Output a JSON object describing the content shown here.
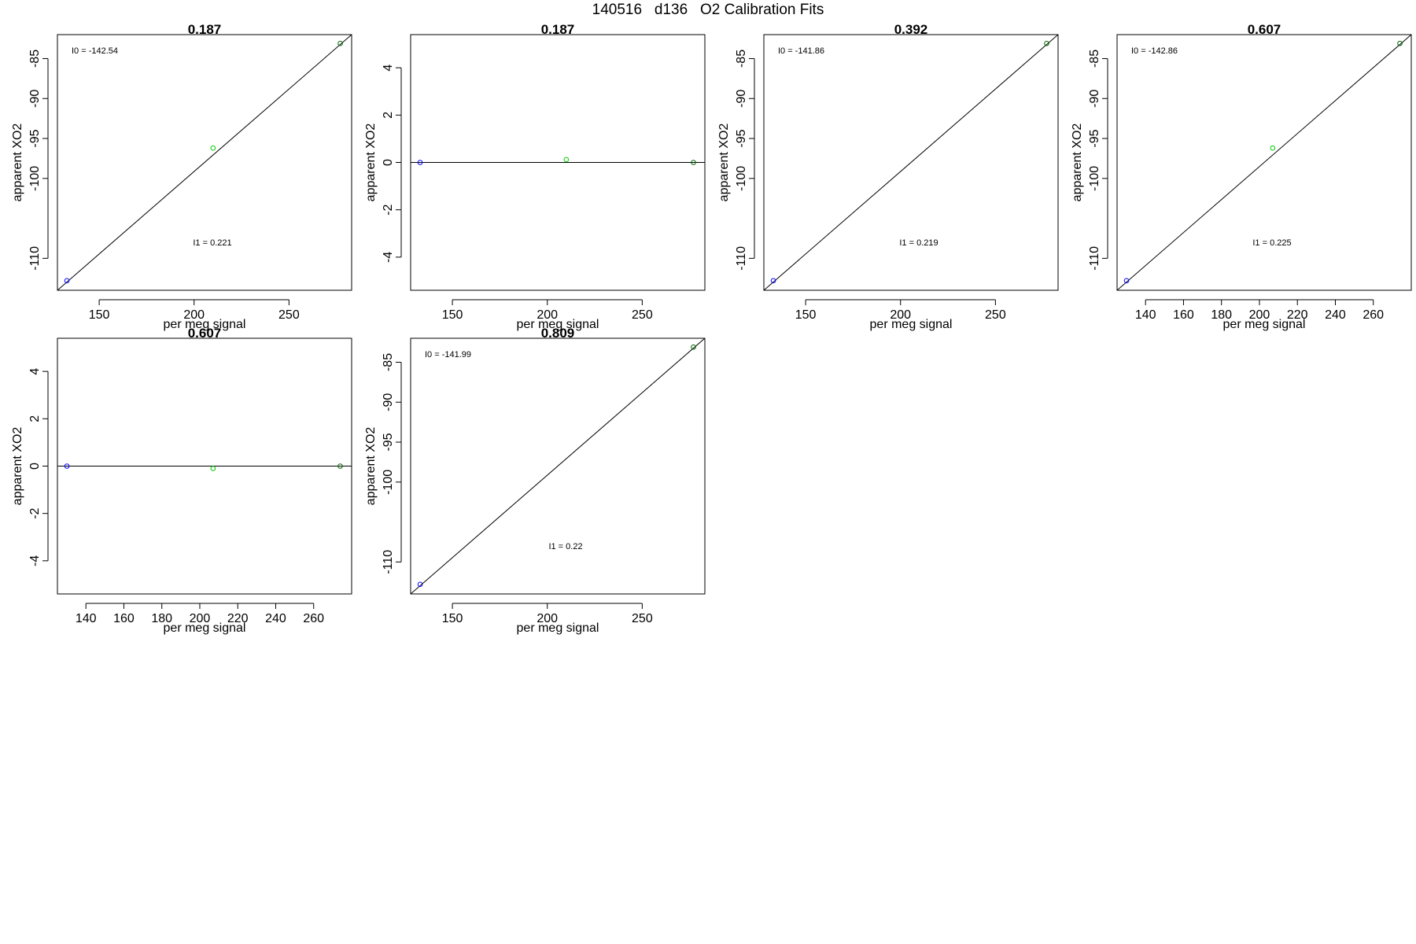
{
  "page": {
    "title": "140516   d136   O2 Calibration Fits"
  },
  "colors": {
    "frame": "#000000",
    "fit_line": "#000000",
    "low_point": "#0000ff",
    "mid_point": "#00cc00",
    "high_point": "#006400"
  },
  "chart_data": [
    {
      "type": "scatter",
      "title": "0.187",
      "xlabel": "per meg signal",
      "ylabel": "apparent XO2",
      "xlim": [
        128,
        283
      ],
      "ylim": [
        -114,
        -82
      ],
      "x_ticks": [
        150,
        200,
        250
      ],
      "y_ticks": [
        -85,
        -90,
        -95,
        -100,
        -110
      ],
      "points": [
        {
          "x": 133,
          "y": -112.8,
          "color": "low_point"
        },
        {
          "x": 210,
          "y": -96.2,
          "color": "mid_point"
        },
        {
          "x": 277,
          "y": -83.1,
          "color": "high_point"
        }
      ],
      "fit_line": {
        "x": [
          128,
          283
        ],
        "y": [
          -114,
          -82
        ]
      },
      "annotations": [
        {
          "label": "I0 =",
          "value": "-142.54",
          "anchor": "top-left"
        },
        {
          "label": "I1 =",
          "value": "0.221",
          "anchor": "bottom-center"
        }
      ],
      "grid": false
    },
    {
      "type": "scatter",
      "title": "0.187",
      "xlabel": "per meg signal",
      "ylabel": "apparent XO2",
      "xlim": [
        128,
        283
      ],
      "ylim": [
        -5.4,
        5.4
      ],
      "x_ticks": [
        150,
        200,
        250
      ],
      "y_ticks": [
        4,
        2,
        0,
        -2,
        -4
      ],
      "points": [
        {
          "x": 133,
          "y": 0.0,
          "color": "low_point"
        },
        {
          "x": 210,
          "y": 0.12,
          "color": "mid_point"
        },
        {
          "x": 277,
          "y": 0.0,
          "color": "high_point"
        }
      ],
      "fit_line": {
        "x": [
          128,
          283
        ],
        "y": [
          0,
          0
        ]
      },
      "annotations": [],
      "grid": false
    },
    {
      "type": "scatter",
      "title": "0.392",
      "xlabel": "per meg signal",
      "ylabel": "apparent XO2",
      "xlim": [
        128,
        283
      ],
      "ylim": [
        -114,
        -82
      ],
      "x_ticks": [
        150,
        200,
        250
      ],
      "y_ticks": [
        -85,
        -90,
        -95,
        -100,
        -110
      ],
      "points": [
        {
          "x": 133,
          "y": -112.8,
          "color": "low_point"
        },
        {
          "x": 277,
          "y": -83.1,
          "color": "high_point"
        }
      ],
      "fit_line": {
        "x": [
          128,
          283
        ],
        "y": [
          -114,
          -82
        ]
      },
      "annotations": [
        {
          "label": "I0 =",
          "value": "-141.86",
          "anchor": "top-left"
        },
        {
          "label": "I1 =",
          "value": "0.219",
          "anchor": "bottom-center"
        }
      ],
      "grid": false
    },
    {
      "type": "scatter",
      "title": "0.607",
      "xlabel": "per meg signal",
      "ylabel": "apparent XO2",
      "xlim": [
        125,
        280
      ],
      "ylim": [
        -114,
        -82
      ],
      "x_ticks": [
        140,
        160,
        180,
        200,
        220,
        240,
        260
      ],
      "y_ticks": [
        -85,
        -90,
        -95,
        -100,
        -110
      ],
      "points": [
        {
          "x": 130,
          "y": -112.8,
          "color": "low_point"
        },
        {
          "x": 207,
          "y": -96.2,
          "color": "mid_point"
        },
        {
          "x": 274,
          "y": -83.1,
          "color": "high_point"
        }
      ],
      "fit_line": {
        "x": [
          125,
          280
        ],
        "y": [
          -114,
          -82
        ]
      },
      "annotations": [
        {
          "label": "I0 =",
          "value": "-142.86",
          "anchor": "top-left"
        },
        {
          "label": "I1 =",
          "value": "0.225",
          "anchor": "bottom-center"
        }
      ],
      "grid": false
    },
    {
      "type": "scatter",
      "title": "0.607",
      "xlabel": "per meg signal",
      "ylabel": "apparent XO2",
      "xlim": [
        125,
        280
      ],
      "ylim": [
        -5.4,
        5.4
      ],
      "x_ticks": [
        140,
        160,
        180,
        200,
        220,
        240,
        260
      ],
      "y_ticks": [
        4,
        2,
        0,
        -2,
        -4
      ],
      "points": [
        {
          "x": 130,
          "y": 0.0,
          "color": "low_point"
        },
        {
          "x": 207,
          "y": -0.1,
          "color": "mid_point"
        },
        {
          "x": 274,
          "y": 0.0,
          "color": "high_point"
        }
      ],
      "fit_line": {
        "x": [
          125,
          280
        ],
        "y": [
          0,
          0
        ]
      },
      "annotations": [],
      "grid": false
    },
    {
      "type": "scatter",
      "title": "0.809",
      "xlabel": "per meg signal",
      "ylabel": "apparent XO2",
      "xlim": [
        128,
        283
      ],
      "ylim": [
        -114,
        -82
      ],
      "x_ticks": [
        150,
        200,
        250
      ],
      "y_ticks": [
        -85,
        -90,
        -95,
        -100,
        -110
      ],
      "points": [
        {
          "x": 133,
          "y": -112.8,
          "color": "low_point"
        },
        {
          "x": 277,
          "y": -83.1,
          "color": "high_point"
        }
      ],
      "fit_line": {
        "x": [
          128,
          283
        ],
        "y": [
          -114,
          -82
        ]
      },
      "annotations": [
        {
          "label": "I0 =",
          "value": "-141.99",
          "anchor": "top-left"
        },
        {
          "label": "I1 =",
          "value": "0.22",
          "anchor": "bottom-center"
        }
      ],
      "grid": false
    }
  ]
}
